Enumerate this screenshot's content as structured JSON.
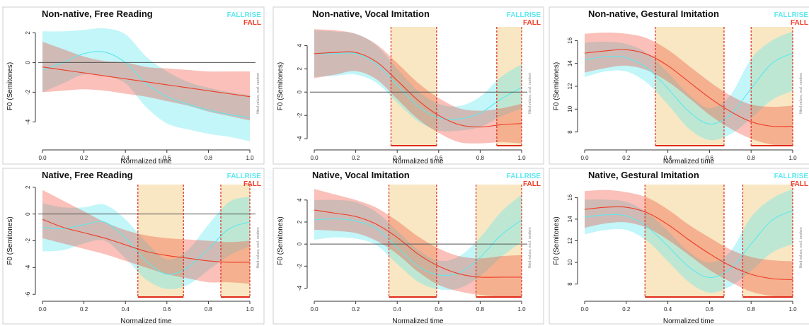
{
  "chart_data": [
    {
      "type": "line",
      "title": "Non-native, Free Reading",
      "xlabel": "Normalized time",
      "ylabel": "F0 (Semitones)",
      "side_note": "fitted values, excl. random",
      "xlim": [
        0,
        1
      ],
      "ylim": [
        -5.6,
        2.4
      ],
      "xticks": [
        "0.0",
        "0.2",
        "0.4",
        "0.6",
        "0.8",
        "1.0"
      ],
      "yticks": [
        2,
        0,
        -2,
        -4
      ],
      "legend": [
        "FALLRISE",
        "FALL"
      ],
      "ref_line": 0,
      "sig_intervals": [],
      "x": [
        0,
        0.1,
        0.2,
        0.3,
        0.4,
        0.5,
        0.6,
        0.7,
        0.8,
        0.9,
        1
      ],
      "series": [
        {
          "name": "FALLRISE",
          "mean": [
            -0.5,
            0.0,
            0.6,
            0.7,
            0.0,
            -1.4,
            -2.3,
            -2.8,
            -3.2,
            -3.5,
            -3.7
          ],
          "lower": [
            -2.0,
            -1.4,
            -0.8,
            -0.9,
            -1.4,
            -3.0,
            -4.1,
            -4.5,
            -4.8,
            -5.0,
            -5.3
          ],
          "upper": [
            2.1,
            2.1,
            2.2,
            2.3,
            1.9,
            0.4,
            -0.6,
            -1.3,
            -1.7,
            -2.0,
            -2.2
          ]
        },
        {
          "name": "FALL",
          "mean": [
            -0.3,
            -0.5,
            -0.7,
            -0.9,
            -1.1,
            -1.3,
            -1.5,
            -1.7,
            -1.9,
            -2.1,
            -2.3
          ],
          "lower": [
            -2.0,
            -1.9,
            -1.8,
            -1.9,
            -2.1,
            -2.3,
            -2.6,
            -2.9,
            -3.3,
            -3.6,
            -3.9
          ],
          "upper": [
            1.4,
            0.9,
            0.4,
            0.1,
            0.0,
            -0.3,
            -0.4,
            -0.5,
            -0.6,
            -0.6,
            -0.6
          ]
        }
      ]
    },
    {
      "type": "line",
      "title": "Non-native, Vocal Imitation",
      "xlabel": "Normalized time",
      "ylabel": "F0 (Semitones)",
      "side_note": "fitted values, excl. random",
      "xlim": [
        0,
        1
      ],
      "ylim": [
        -4.6,
        5.6
      ],
      "xticks": [
        "0.0",
        "0.2",
        "0.4",
        "0.6",
        "0.8",
        "1.0"
      ],
      "yticks": [
        4,
        2,
        0,
        -2,
        -4
      ],
      "legend": [
        "FALLRISE",
        "FALL"
      ],
      "ref_line": 0,
      "sig_intervals": [
        [
          0.37,
          0.59
        ],
        [
          0.88,
          1.0
        ]
      ],
      "x": [
        0,
        0.1,
        0.2,
        0.3,
        0.4,
        0.5,
        0.6,
        0.7,
        0.8,
        0.9,
        1
      ],
      "series": [
        {
          "name": "FALLRISE",
          "mean": [
            3.3,
            3.3,
            3.3,
            2.4,
            0.6,
            -1.2,
            -2.2,
            -2.3,
            -1.8,
            -0.6,
            0.4
          ],
          "lower": [
            1.3,
            1.4,
            1.5,
            0.8,
            -0.9,
            -2.5,
            -3.3,
            -3.3,
            -3.0,
            -2.1,
            -1.4
          ],
          "upper": [
            5.3,
            5.2,
            5.0,
            4.0,
            2.0,
            0.1,
            -1.0,
            -1.2,
            -0.4,
            1.3,
            2.4
          ]
        },
        {
          "name": "FALL",
          "mean": [
            3.3,
            3.4,
            3.4,
            2.6,
            1.0,
            -0.7,
            -2.0,
            -2.8,
            -3.0,
            -2.8,
            -2.7
          ],
          "lower": [
            1.2,
            1.5,
            1.8,
            1.1,
            -0.6,
            -2.3,
            -3.5,
            -4.3,
            -4.4,
            -4.3,
            -4.4
          ],
          "upper": [
            5.4,
            5.3,
            5.0,
            4.1,
            2.5,
            0.8,
            -0.5,
            -1.4,
            -1.6,
            -1.4,
            -1.0
          ]
        }
      ]
    },
    {
      "type": "line",
      "title": "Non-native, Gestural Imitation",
      "xlabel": "Normalized time",
      "ylabel": "F0 (Semitones)",
      "side_note": "fitted values, excl. random",
      "xlim": [
        0,
        1
      ],
      "ylim": [
        6.8,
        17.2
      ],
      "xticks": [
        "0.0",
        "0.2",
        "0.4",
        "0.6",
        "0.8",
        "1.0"
      ],
      "yticks": [
        16,
        14,
        12,
        10,
        8
      ],
      "legend": [
        "FALLRISE",
        "FALL"
      ],
      "ref_line": null,
      "sig_intervals": [
        [
          0.34,
          0.67
        ],
        [
          0.8,
          1.0
        ]
      ],
      "x": [
        0,
        0.1,
        0.2,
        0.3,
        0.4,
        0.5,
        0.6,
        0.7,
        0.8,
        0.9,
        1
      ],
      "series": [
        {
          "name": "FALLRISE",
          "mean": [
            14.3,
            14.6,
            14.5,
            13.6,
            11.8,
            9.8,
            8.7,
            9.5,
            11.8,
            14.0,
            14.9
          ],
          "lower": [
            12.8,
            13.3,
            13.3,
            12.3,
            10.4,
            8.3,
            7.3,
            7.8,
            9.2,
            10.8,
            11.6
          ],
          "upper": [
            15.8,
            15.9,
            15.7,
            14.9,
            13.2,
            11.3,
            10.1,
            11.2,
            14.4,
            16.0,
            16.8
          ]
        },
        {
          "name": "FALL",
          "mean": [
            14.9,
            15.1,
            15.2,
            14.8,
            13.8,
            12.4,
            11.0,
            9.8,
            8.9,
            8.5,
            8.5
          ],
          "lower": [
            13.2,
            13.6,
            13.8,
            13.4,
            12.4,
            11.0,
            9.5,
            8.3,
            7.4,
            6.9,
            6.8
          ],
          "upper": [
            16.6,
            16.7,
            16.6,
            16.2,
            15.2,
            13.8,
            12.4,
            11.2,
            10.4,
            10.2,
            10.3
          ]
        }
      ]
    },
    {
      "type": "line",
      "title": "Native, Free Reading",
      "xlabel": "Normalized time",
      "ylabel": "F0 (Semitones)",
      "side_note": "fitted values, excl. random",
      "xlim": [
        0,
        1
      ],
      "ylim": [
        -6.2,
        2.2
      ],
      "xticks": [
        "0.0",
        "0.2",
        "0.4",
        "0.6",
        "0.8",
        "1.0"
      ],
      "yticks": [
        2,
        0,
        -2,
        -4,
        -6
      ],
      "legend": [
        "FALLRISE",
        "FALL"
      ],
      "ref_line": 0,
      "sig_intervals": [
        [
          0.46,
          0.68
        ],
        [
          0.86,
          1.0
        ]
      ],
      "x": [
        0,
        0.1,
        0.2,
        0.3,
        0.4,
        0.5,
        0.6,
        0.7,
        0.8,
        0.9,
        1
      ],
      "series": [
        {
          "name": "FALLRISE",
          "mean": [
            -1.0,
            -1.1,
            -0.8,
            -0.6,
            -1.8,
            -3.5,
            -4.5,
            -4.0,
            -2.6,
            -1.1,
            -0.6
          ],
          "lower": [
            -2.8,
            -2.7,
            -2.2,
            -2.0,
            -3.3,
            -4.9,
            -5.6,
            -5.3,
            -4.2,
            -3.1,
            -2.4
          ],
          "upper": [
            0.8,
            0.5,
            0.5,
            0.7,
            -0.4,
            -2.1,
            -3.4,
            -2.7,
            -0.8,
            0.9,
            1.3
          ]
        },
        {
          "name": "FALL",
          "mean": [
            -0.4,
            -1.0,
            -1.4,
            -1.8,
            -2.3,
            -2.8,
            -3.1,
            -3.3,
            -3.5,
            -3.6,
            -3.6
          ],
          "lower": [
            -1.8,
            -2.2,
            -2.6,
            -3.0,
            -3.5,
            -4.0,
            -4.5,
            -4.8,
            -5.1,
            -5.1,
            -5.2
          ],
          "upper": [
            1.8,
            1.0,
            0.2,
            -0.6,
            -1.2,
            -1.6,
            -1.8,
            -1.9,
            -2.0,
            -2.1,
            -2.0
          ]
        }
      ]
    },
    {
      "type": "line",
      "title": "Native, Vocal Imitation",
      "xlabel": "Normalized time",
      "ylabel": "F0 (Semitones)",
      "side_note": "fitted values, excl. random",
      "xlim": [
        0,
        1
      ],
      "ylim": [
        -4.8,
        5.4
      ],
      "xticks": [
        "0.0",
        "0.2",
        "0.4",
        "0.6",
        "0.8",
        "1.0"
      ],
      "yticks": [
        4,
        2,
        0,
        -2,
        -4
      ],
      "legend": [
        "FALLRISE",
        "FALL"
      ],
      "ref_line": 0,
      "sig_intervals": [
        [
          0.36,
          0.59
        ],
        [
          0.78,
          1.0
        ]
      ],
      "x": [
        0,
        0.1,
        0.2,
        0.3,
        0.4,
        0.5,
        0.6,
        0.7,
        0.8,
        0.9,
        1
      ],
      "series": [
        {
          "name": "FALLRISE",
          "mean": [
            2.2,
            2.3,
            2.1,
            1.4,
            -0.3,
            -2.0,
            -2.8,
            -2.6,
            -1.2,
            0.8,
            2.2
          ],
          "lower": [
            0.4,
            0.6,
            0.5,
            -0.1,
            -1.8,
            -3.4,
            -4.1,
            -4.0,
            -2.9,
            -1.2,
            0.2
          ],
          "upper": [
            4.0,
            4.0,
            3.8,
            2.9,
            1.2,
            -0.5,
            -1.5,
            -1.1,
            0.6,
            2.9,
            4.5
          ]
        },
        {
          "name": "FALL",
          "mean": [
            3.1,
            2.8,
            2.5,
            1.8,
            0.6,
            -0.9,
            -2.0,
            -2.7,
            -3.0,
            -3.0,
            -3.0
          ],
          "lower": [
            1.3,
            1.2,
            1.0,
            0.3,
            -0.9,
            -2.5,
            -3.7,
            -4.3,
            -4.6,
            -4.8,
            -5.0
          ],
          "upper": [
            5.0,
            4.5,
            4.0,
            3.3,
            2.1,
            0.7,
            -0.4,
            -1.1,
            -1.3,
            -1.1,
            -1.0
          ]
        }
      ]
    },
    {
      "type": "line",
      "title": "Native, Gestural Imitation",
      "xlabel": "Normalized time",
      "ylabel": "F0 (Semitones)",
      "side_note": "fitted values, excl. random",
      "xlim": [
        0,
        1
      ],
      "ylim": [
        6.8,
        17.2
      ],
      "xticks": [
        "0.0",
        "0.2",
        "0.4",
        "0.6",
        "0.8",
        "1.0"
      ],
      "yticks": [
        16,
        14,
        12,
        10,
        8
      ],
      "legend": [
        "FALLRISE",
        "FALL"
      ],
      "ref_line": null,
      "sig_intervals": [
        [
          0.29,
          0.67
        ],
        [
          0.76,
          1.0
        ]
      ],
      "x": [
        0,
        0.1,
        0.2,
        0.3,
        0.4,
        0.5,
        0.6,
        0.7,
        0.8,
        0.9,
        1
      ],
      "series": [
        {
          "name": "FALLRISE",
          "mean": [
            14.2,
            14.4,
            14.3,
            13.3,
            11.5,
            9.6,
            8.6,
            9.4,
            11.7,
            13.9,
            14.8
          ],
          "lower": [
            12.6,
            13.0,
            13.0,
            12.0,
            10.1,
            8.2,
            7.2,
            7.8,
            9.2,
            10.9,
            11.7
          ],
          "upper": [
            15.8,
            15.8,
            15.6,
            14.6,
            12.9,
            11.0,
            10.0,
            11.0,
            14.2,
            15.9,
            16.8
          ]
        },
        {
          "name": "FALL",
          "mean": [
            14.9,
            15.1,
            15.1,
            14.6,
            13.5,
            12.1,
            10.8,
            9.7,
            8.9,
            8.5,
            8.4
          ],
          "lower": [
            13.2,
            13.6,
            13.7,
            13.2,
            12.1,
            10.7,
            9.3,
            8.2,
            7.3,
            6.9,
            6.8
          ],
          "upper": [
            16.6,
            16.7,
            16.5,
            16.0,
            14.9,
            13.5,
            12.3,
            11.2,
            10.5,
            10.2,
            10.1
          ]
        }
      ]
    }
  ],
  "colors": {
    "fallrise": "#5ee8ee",
    "fallrise_band": "#b6f6fa",
    "fall": "#ee3c26",
    "fall_band": "#f6b3b3",
    "overlap_band": "#c8d0d0",
    "sig_shade": "#f8e7c2",
    "sig_line": "#e02a1a",
    "panel_border": "#cfcfcf",
    "axis": "#333333"
  }
}
